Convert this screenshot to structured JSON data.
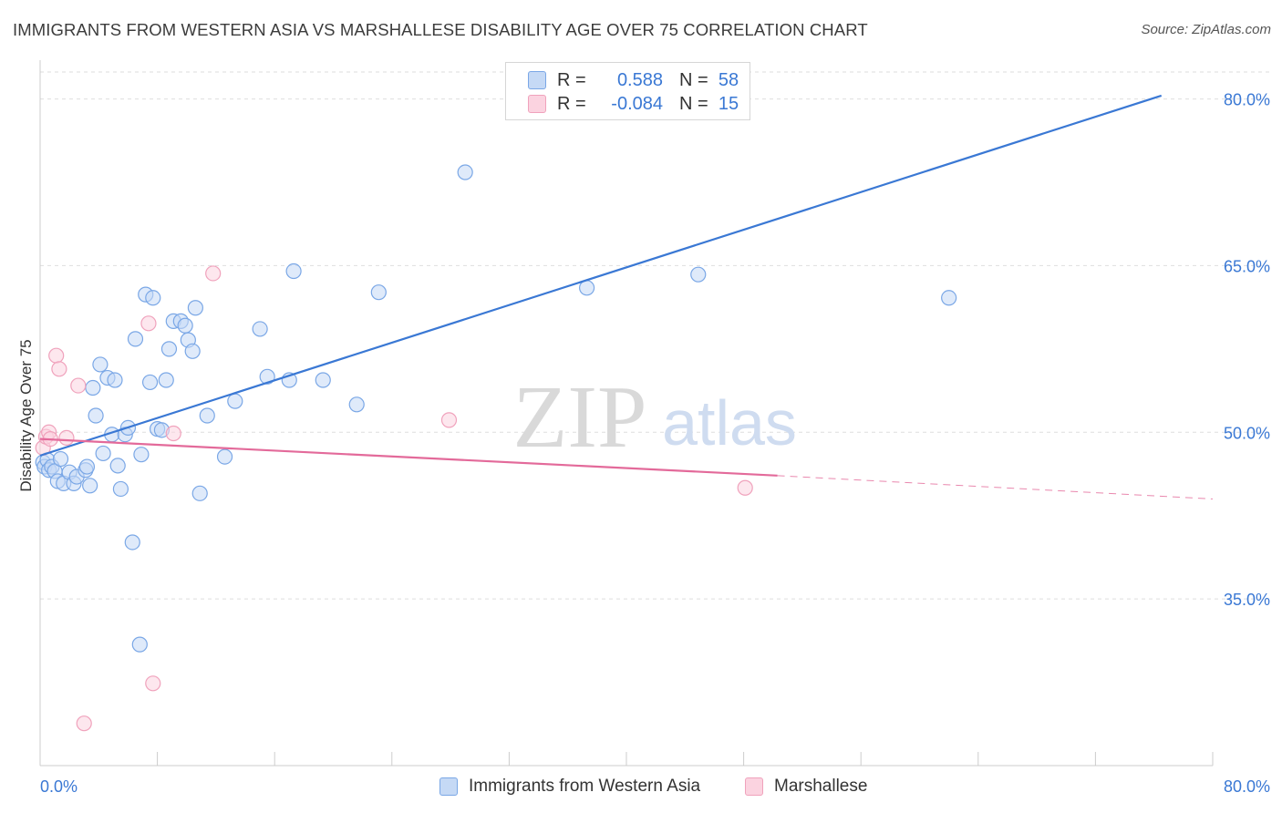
{
  "title": "IMMIGRANTS FROM WESTERN ASIA VS MARSHALLESE DISABILITY AGE OVER 75 CORRELATION CHART",
  "source": "Source: ZipAtlas.com",
  "watermark": {
    "zip": "ZIP",
    "atlas": "atlas"
  },
  "legend": {
    "r_label": "R =",
    "n_label": "N =",
    "rows": [
      {
        "r": "0.588",
        "n": "58",
        "fill": "#c5d9f5",
        "stroke": "#7aa7e6"
      },
      {
        "r": "-0.084",
        "n": "15",
        "fill": "#fbd3e0",
        "stroke": "#f0a2bc"
      }
    ]
  },
  "chart_data": {
    "type": "scatter",
    "ylabel": "Disability Age Over 75",
    "xlim": [
      0,
      80
    ],
    "ylim": [
      20,
      83
    ],
    "x_ticks": [
      "0.0%",
      "80.0%"
    ],
    "y_ticks": [
      {
        "value": 35,
        "label": "35.0%"
      },
      {
        "value": 50,
        "label": "50.0%"
      },
      {
        "value": 65,
        "label": "65.0%"
      },
      {
        "value": 80,
        "label": "80.0%"
      }
    ],
    "grid": "horizontal dashed",
    "series": [
      {
        "name": "Immigrants from Western Asia",
        "color": "#3a78d4",
        "fill": "#c5d9f5",
        "stroke": "#7aa7e6",
        "points": [
          [
            0.2,
            47.3
          ],
          [
            0.3,
            46.9
          ],
          [
            0.5,
            47.5
          ],
          [
            0.6,
            46.6
          ],
          [
            0.8,
            46.9
          ],
          [
            1.0,
            46.5
          ],
          [
            1.2,
            45.6
          ],
          [
            1.4,
            47.6
          ],
          [
            1.6,
            45.4
          ],
          [
            2.0,
            46.4
          ],
          [
            2.3,
            45.4
          ],
          [
            2.5,
            46.0
          ],
          [
            3.1,
            46.6
          ],
          [
            3.2,
            46.9
          ],
          [
            3.4,
            45.2
          ],
          [
            3.6,
            54.0
          ],
          [
            3.8,
            51.5
          ],
          [
            4.1,
            56.1
          ],
          [
            4.3,
            48.1
          ],
          [
            4.6,
            54.9
          ],
          [
            4.9,
            49.8
          ],
          [
            5.1,
            54.7
          ],
          [
            5.3,
            47.0
          ],
          [
            5.5,
            44.9
          ],
          [
            5.8,
            49.8
          ],
          [
            6.0,
            50.4
          ],
          [
            6.3,
            40.1
          ],
          [
            6.5,
            58.4
          ],
          [
            6.8,
            30.9
          ],
          [
            6.9,
            48.0
          ],
          [
            7.2,
            62.4
          ],
          [
            7.5,
            54.5
          ],
          [
            7.7,
            62.1
          ],
          [
            8.0,
            50.3
          ],
          [
            8.3,
            50.2
          ],
          [
            8.6,
            54.7
          ],
          [
            8.8,
            57.5
          ],
          [
            9.1,
            60.0
          ],
          [
            9.6,
            60.0
          ],
          [
            9.9,
            59.6
          ],
          [
            10.1,
            58.3
          ],
          [
            10.4,
            57.3
          ],
          [
            10.6,
            61.2
          ],
          [
            10.9,
            44.5
          ],
          [
            11.4,
            51.5
          ],
          [
            12.6,
            47.8
          ],
          [
            13.3,
            52.8
          ],
          [
            15.0,
            59.3
          ],
          [
            15.5,
            55.0
          ],
          [
            17.0,
            54.7
          ],
          [
            17.3,
            64.5
          ],
          [
            19.3,
            54.7
          ],
          [
            21.6,
            52.5
          ],
          [
            23.1,
            62.6
          ],
          [
            29.0,
            73.4
          ],
          [
            37.3,
            63.0
          ],
          [
            44.9,
            64.2
          ],
          [
            62.0,
            62.1
          ]
        ],
        "trend": {
          "x1": 0,
          "y1": 47.9,
          "x2": 76.5,
          "y2": 80.3
        }
      },
      {
        "name": "Marshallese",
        "color": "#e36a9a",
        "fill": "#fbd3e0",
        "stroke": "#f0a2bc",
        "points": [
          [
            0.2,
            48.6
          ],
          [
            0.4,
            49.6
          ],
          [
            0.6,
            50.0
          ],
          [
            0.7,
            49.4
          ],
          [
            1.1,
            56.9
          ],
          [
            1.3,
            55.7
          ],
          [
            1.8,
            49.5
          ],
          [
            2.6,
            54.2
          ],
          [
            3.0,
            23.8
          ],
          [
            7.4,
            59.8
          ],
          [
            7.7,
            27.4
          ],
          [
            9.1,
            49.9
          ],
          [
            11.8,
            64.3
          ],
          [
            27.9,
            51.1
          ],
          [
            48.1,
            45.0
          ]
        ],
        "trend": {
          "x1": 0,
          "y1": 49.4,
          "x2": 50.3,
          "y2": 46.1
        },
        "trend_dashed": {
          "x1": 50.3,
          "y1": 46.1,
          "x2": 80,
          "y2": 44.0
        }
      }
    ]
  }
}
